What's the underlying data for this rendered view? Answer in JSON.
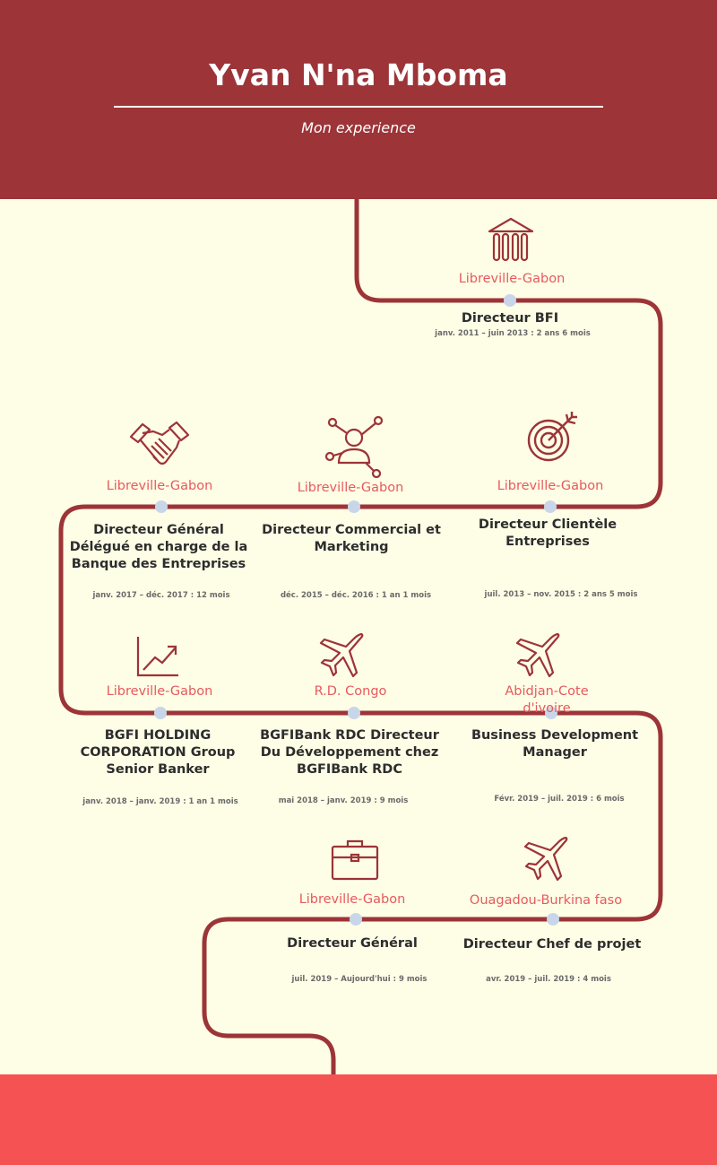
{
  "header": {
    "name": "Yvan N'na Mboma",
    "subtitle": "Mon experience"
  },
  "colors": {
    "header_bg": "#9c3438",
    "path": "#9c3438",
    "background": "#fefde6",
    "location_text": "#e65a5e",
    "footer_bg": "#f55254",
    "dot": "#c9d6ea"
  },
  "experiences": [
    {
      "icon": "bank-icon",
      "location": "Libreville-Gabon",
      "role": "Directeur BFI",
      "dates": "janv. 2011 – juin 2013 : 2 ans 6 mois"
    },
    {
      "icon": "target-icon",
      "location": "Libreville-Gabon",
      "role": "Directeur Clientèle Entreprises",
      "dates": "juil. 2013 – nov. 2015 : 2 ans 5 mois"
    },
    {
      "icon": "network-person-icon",
      "location": "Libreville-Gabon",
      "role": "Directeur Commercial et Marketing",
      "dates": "déc. 2015 – déc. 2016 : 1 an 1 mois"
    },
    {
      "icon": "handshake-icon",
      "location": "Libreville-Gabon",
      "role": "Directeur Général Délégué en charge de la Banque des Entreprises",
      "dates": "janv. 2017 – déc. 2017 : 12 mois"
    },
    {
      "icon": "growth-chart-icon",
      "location": "Libreville-Gabon",
      "role": "BGFI HOLDING CORPORATION Group Senior Banker",
      "dates": "janv. 2018 – janv. 2019 : 1 an 1 mois"
    },
    {
      "icon": "airplane-icon",
      "location": "R.D. Congo",
      "role": "BGFIBank RDC Directeur Du Développement chez BGFIBank RDC",
      "dates": "mai 2018 – janv. 2019 : 9 mois"
    },
    {
      "icon": "airplane-icon",
      "location": "Abidjan-Cote d'ivoire",
      "role": "Business Development Manager",
      "dates": "Févr. 2019 – juil. 2019 : 6 mois"
    },
    {
      "icon": "airplane-icon",
      "location": "Ouagadou-Burkina faso",
      "role": "Directeur Chef de projet",
      "dates": "avr. 2019 – juil. 2019 : 4 mois"
    },
    {
      "icon": "briefcase-icon",
      "location": "Libreville-Gabon",
      "role": "Directeur Général",
      "dates": "juil. 2019 – Aujourd'hui :  9 mois"
    }
  ]
}
